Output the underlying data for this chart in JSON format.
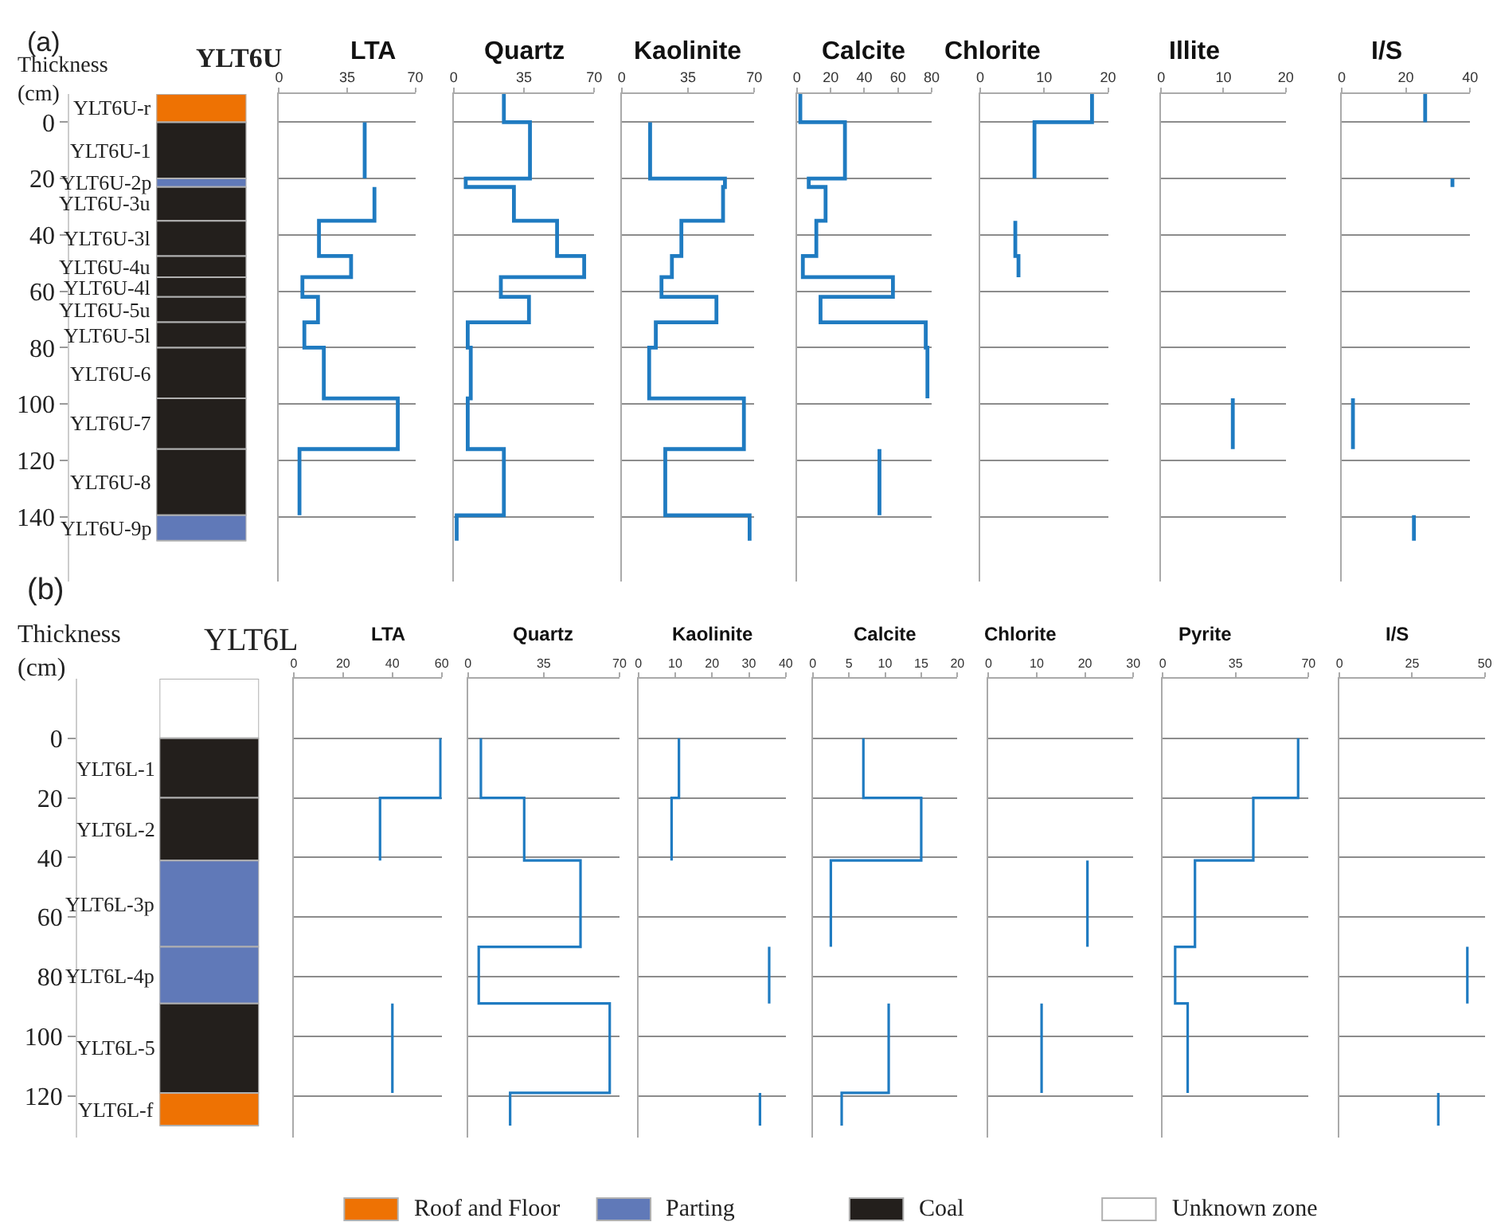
{
  "chart_data": [
    {
      "type": "bar",
      "title": "YLT6U",
      "ylabel": "Thickness (cm)",
      "categories": [
        null
      ],
      "ylim": [
        163,
        -10
      ],
      "yticks": [
        0,
        20,
        40,
        60,
        80,
        100,
        120,
        140
      ],
      "tick_labels": "y",
      "series": [
        {
          "name": "YLT6U-r",
          "color": "#ee7203",
          "base": [
            -10
          ],
          "values": [
            10
          ]
        },
        {
          "name": "YLT6U-1",
          "color": "#231f1c",
          "base": [
            0
          ],
          "values": [
            20
          ]
        },
        {
          "name": "YLT6U-2p",
          "color": "#6079b8",
          "base": [
            20
          ],
          "values": [
            3
          ]
        },
        {
          "name": "YLT6U-3u",
          "color": "#231f1c",
          "base": [
            23
          ],
          "values": [
            12
          ]
        },
        {
          "name": "YLT6U-3l",
          "color": "#231f1c",
          "base": [
            35
          ],
          "values": [
            12.5
          ]
        },
        {
          "name": "YLT6U-4u",
          "color": "#231f1c",
          "base": [
            47.5
          ],
          "values": [
            7.5
          ]
        },
        {
          "name": "YLT6U-4l",
          "color": "#231f1c",
          "base": [
            55
          ],
          "values": [
            7
          ]
        },
        {
          "name": "YLT6U-5u",
          "color": "#231f1c",
          "base": [
            62
          ],
          "values": [
            9
          ]
        },
        {
          "name": "YLT6U-5l",
          "color": "#231f1c",
          "base": [
            71
          ],
          "values": [
            9
          ]
        },
        {
          "name": "YLT6U-6",
          "color": "#231f1c",
          "base": [
            80
          ],
          "values": [
            18
          ]
        },
        {
          "name": "YLT6U-7",
          "color": "#231f1c",
          "base": [
            98
          ],
          "values": [
            18
          ]
        },
        {
          "name": "YLT6U-8",
          "color": "#231f1c",
          "base": [
            116
          ],
          "values": [
            23.5
          ]
        },
        {
          "name": "YLT6U-9p",
          "color": "#6079b8",
          "base": [
            139.5
          ],
          "values": [
            9
          ]
        }
      ],
      "annotations": [
        "(a)"
      ]
    },
    {
      "type": "line",
      "orientation": "horizontal",
      "title": "LTA",
      "xlim": [
        0,
        70
      ],
      "xticks": [
        0,
        35,
        70
      ],
      "ylim": [
        163,
        -10
      ],
      "yticks": [
        0,
        20,
        40,
        60,
        80,
        100,
        120,
        140
      ],
      "grid": "y",
      "tick_labels": "x",
      "series": [
        {
          "color": "#1f7bc1",
          "x": [
            0,
            20,
            null,
            23,
            35,
            35,
            47.5,
            47.5,
            55,
            55,
            62,
            62,
            71,
            71,
            80,
            80,
            98,
            98,
            116,
            116,
            139.5
          ],
          "values": [
            44,
            44,
            null,
            49,
            49,
            20.5,
            20.5,
            37,
            37,
            12,
            12,
            20,
            20,
            13,
            13,
            23,
            23,
            61,
            61,
            10.5,
            10.5
          ]
        }
      ]
    },
    {
      "type": "line",
      "orientation": "horizontal",
      "title": "Quartz",
      "xlim": [
        0,
        70
      ],
      "xticks": [
        0,
        35,
        70
      ],
      "ylim": [
        163,
        -10
      ],
      "yticks": [
        0,
        20,
        40,
        60,
        80,
        100,
        120,
        140
      ],
      "grid": "y",
      "tick_labels": "x",
      "series": [
        {
          "color": "#1f7bc1",
          "x": [
            -10,
            0,
            0,
            20,
            20,
            23,
            23,
            35,
            35,
            47.5,
            47.5,
            55,
            55,
            62,
            62,
            71,
            71,
            80,
            80,
            98,
            98,
            116,
            116,
            139.5,
            139.5,
            148.5
          ],
          "values": [
            25,
            25,
            38,
            38,
            6,
            6,
            30,
            30,
            51.5,
            51.5,
            65,
            65,
            23.5,
            23.5,
            37.5,
            37.5,
            7,
            7,
            8.5,
            8.5,
            7,
            7,
            25,
            25,
            1.5,
            1.5
          ]
        }
      ]
    },
    {
      "type": "line",
      "orientation": "horizontal",
      "title": "Kaolinite",
      "xlim": [
        0,
        70
      ],
      "xticks": [
        0,
        35,
        70
      ],
      "ylim": [
        163,
        -10
      ],
      "yticks": [
        0,
        20,
        40,
        60,
        80,
        100,
        120,
        140
      ],
      "grid": "y",
      "tick_labels": "x",
      "series": [
        {
          "color": "#1f7bc1",
          "x": [
            0,
            20,
            20,
            23,
            23,
            35,
            35,
            47.5,
            47.5,
            55,
            55,
            62,
            62,
            71,
            71,
            80,
            80,
            98,
            98,
            116,
            116,
            139.5,
            139.5,
            148.5
          ],
          "values": [
            15,
            15,
            54.5,
            54.5,
            53.5,
            53.5,
            31.5,
            31.5,
            26.5,
            26.5,
            21,
            21,
            50,
            50,
            18,
            18,
            14.5,
            14.5,
            64.5,
            64.5,
            23,
            23,
            67.5,
            67.5
          ]
        }
      ]
    },
    {
      "type": "line",
      "orientation": "horizontal",
      "title": "Calcite",
      "xlim": [
        0,
        80
      ],
      "xticks": [
        0,
        20,
        40,
        60,
        80
      ],
      "ylim": [
        163,
        -10
      ],
      "yticks": [
        0,
        20,
        40,
        60,
        80,
        100,
        120,
        140
      ],
      "grid": "y",
      "tick_labels": "x",
      "series": [
        {
          "color": "#1f7bc1",
          "x": [
            -10,
            0,
            0,
            20,
            20,
            23,
            23,
            35,
            35,
            47.5,
            47.5,
            55,
            55,
            62,
            62,
            71,
            71,
            80,
            80,
            98,
            null,
            116,
            139.5
          ],
          "values": [
            2,
            2,
            28.5,
            28.5,
            7,
            7,
            17,
            17,
            11.5,
            11.5,
            3.5,
            3.5,
            57,
            57,
            14,
            14,
            76.5,
            76.5,
            77.5,
            77.5,
            null,
            49,
            49
          ]
        }
      ]
    },
    {
      "type": "line",
      "orientation": "horizontal",
      "title": "Chlorite",
      "xlim": [
        0,
        20
      ],
      "xticks": [
        0,
        10,
        20
      ],
      "ylim": [
        163,
        -10
      ],
      "yticks": [
        0,
        20,
        40,
        60,
        80,
        100,
        120,
        140
      ],
      "grid": "y",
      "tick_labels": "x",
      "series": [
        {
          "color": "#1f7bc1",
          "x": [
            -10,
            0,
            0,
            20,
            null,
            35,
            47.5,
            47.5,
            55
          ],
          "values": [
            17.5,
            17.5,
            8.5,
            8.5,
            null,
            5.5,
            5.5,
            6,
            6
          ]
        }
      ]
    },
    {
      "type": "line",
      "orientation": "horizontal",
      "title": "Illite",
      "xlim": [
        0,
        20
      ],
      "xticks": [
        0,
        10,
        20
      ],
      "ylim": [
        163,
        -10
      ],
      "yticks": [
        0,
        20,
        40,
        60,
        80,
        100,
        120,
        140
      ],
      "grid": "y",
      "tick_labels": "x",
      "series": [
        {
          "color": "#1f7bc1",
          "x": [
            98,
            116
          ],
          "values": [
            11.5,
            11.5
          ]
        }
      ]
    },
    {
      "type": "line",
      "orientation": "horizontal",
      "title": "I/S",
      "xlim": [
        0,
        40
      ],
      "xticks": [
        0,
        20,
        40
      ],
      "ylim": [
        163,
        -10
      ],
      "yticks": [
        0,
        20,
        40,
        60,
        80,
        100,
        120,
        140
      ],
      "grid": "y",
      "tick_labels": "x",
      "series": [
        {
          "color": "#1f7bc1",
          "x": [
            -10,
            0,
            null,
            20,
            23,
            null,
            98,
            116,
            null,
            139.5,
            148.5
          ],
          "values": [
            26,
            26,
            null,
            34.5,
            34.5,
            null,
            3.5,
            3.5,
            null,
            22.5,
            22.5
          ]
        }
      ]
    },
    {
      "type": "bar",
      "title": "YLT6L",
      "ylabel": "Thickness (cm)",
      "categories": [
        null
      ],
      "ylim": [
        134,
        -20
      ],
      "yticks": [
        0,
        20,
        40,
        60,
        80,
        100,
        120
      ],
      "tick_labels": "y",
      "series": [
        {
          "color": "#ffffff",
          "base": [
            -20
          ],
          "values": [
            20
          ]
        },
        {
          "name": "YLT6L-1",
          "color": "#231f1c",
          "base": [
            0
          ],
          "values": [
            20
          ]
        },
        {
          "name": "YLT6L-2",
          "color": "#231f1c",
          "base": [
            20
          ],
          "values": [
            21
          ]
        },
        {
          "name": "YLT6L-3p",
          "color": "#6079b8",
          "base": [
            41
          ],
          "values": [
            29
          ]
        },
        {
          "name": "YLT6L-4p",
          "color": "#6079b8",
          "base": [
            70
          ],
          "values": [
            19
          ]
        },
        {
          "name": "YLT6L-5",
          "color": "#231f1c",
          "base": [
            89
          ],
          "values": [
            30
          ]
        },
        {
          "name": "YLT6L-f",
          "color": "#ee7203",
          "base": [
            119
          ],
          "values": [
            11
          ]
        }
      ],
      "annotations": [
        "(b)"
      ]
    },
    {
      "type": "line",
      "orientation": "horizontal",
      "title": "LTA",
      "xlim": [
        0,
        60
      ],
      "xticks": [
        0,
        20,
        40,
        60
      ],
      "ylim": [
        134,
        -20
      ],
      "yticks": [
        0,
        20,
        40,
        60,
        80,
        100,
        120
      ],
      "grid": "y",
      "tick_labels": "x",
      "series": [
        {
          "color": "#1f7bc1",
          "x": [
            0,
            20,
            20,
            41,
            null,
            89,
            119
          ],
          "values": [
            59.5,
            59.5,
            35,
            35,
            null,
            40,
            40
          ]
        }
      ]
    },
    {
      "type": "line",
      "orientation": "horizontal",
      "title": "Quartz",
      "xlim": [
        0,
        70
      ],
      "xticks": [
        0,
        35,
        70
      ],
      "ylim": [
        134,
        -20
      ],
      "yticks": [
        0,
        20,
        40,
        60,
        80,
        100,
        120
      ],
      "grid": "y",
      "tick_labels": "x",
      "series": [
        {
          "color": "#1f7bc1",
          "x": [
            0,
            20,
            20,
            41,
            41,
            70,
            70,
            89,
            89,
            119,
            119,
            130
          ],
          "values": [
            6,
            6,
            26,
            26,
            52,
            52,
            5,
            5,
            65.5,
            65.5,
            19.5,
            19.5
          ]
        }
      ]
    },
    {
      "type": "line",
      "orientation": "horizontal",
      "title": "Kaolinite",
      "xlim": [
        0,
        40
      ],
      "xticks": [
        0,
        10,
        20,
        30,
        40
      ],
      "ylim": [
        134,
        -20
      ],
      "yticks": [
        0,
        20,
        40,
        60,
        80,
        100,
        120
      ],
      "grid": "y",
      "tick_labels": "x",
      "series": [
        {
          "color": "#1f7bc1",
          "x": [
            0,
            20,
            20,
            41,
            null,
            70,
            89,
            null,
            119,
            130
          ],
          "values": [
            11,
            11,
            9,
            9,
            null,
            35.5,
            35.5,
            null,
            33,
            33
          ]
        }
      ]
    },
    {
      "type": "line",
      "orientation": "horizontal",
      "title": "Calcite",
      "xlim": [
        0,
        20
      ],
      "xticks": [
        0,
        5,
        10,
        15,
        20
      ],
      "ylim": [
        134,
        -20
      ],
      "yticks": [
        0,
        20,
        40,
        60,
        80,
        100,
        120
      ],
      "grid": "y",
      "tick_labels": "x",
      "series": [
        {
          "color": "#1f7bc1",
          "x": [
            0,
            20,
            20,
            41,
            41,
            70,
            null,
            89,
            119,
            119,
            130
          ],
          "values": [
            7,
            7,
            15,
            15,
            2.5,
            2.5,
            null,
            10.5,
            10.5,
            4,
            4
          ]
        }
      ]
    },
    {
      "type": "line",
      "orientation": "horizontal",
      "title": "Chlorite",
      "xlim": [
        0,
        30
      ],
      "xticks": [
        0,
        10,
        20,
        30
      ],
      "ylim": [
        134,
        -20
      ],
      "yticks": [
        0,
        20,
        40,
        60,
        80,
        100,
        120
      ],
      "grid": "y",
      "tick_labels": "x",
      "series": [
        {
          "color": "#1f7bc1",
          "x": [
            41,
            70,
            null,
            89,
            119
          ],
          "values": [
            20.5,
            20.5,
            null,
            11,
            11
          ]
        }
      ]
    },
    {
      "type": "line",
      "orientation": "horizontal",
      "title": "Pyrite",
      "xlim": [
        0,
        70
      ],
      "xticks": [
        0,
        35,
        70
      ],
      "ylim": [
        134,
        -20
      ],
      "yticks": [
        0,
        20,
        40,
        60,
        80,
        100,
        120
      ],
      "grid": "y",
      "tick_labels": "x",
      "series": [
        {
          "color": "#1f7bc1",
          "x": [
            0,
            20,
            20,
            41,
            41,
            70,
            70,
            89,
            89,
            119
          ],
          "values": [
            65,
            65,
            43.5,
            43.5,
            15.5,
            15.5,
            6,
            6,
            12,
            12
          ]
        }
      ]
    },
    {
      "type": "line",
      "orientation": "horizontal",
      "title": "I/S",
      "xlim": [
        0,
        50
      ],
      "xticks": [
        0,
        25,
        50
      ],
      "ylim": [
        134,
        -20
      ],
      "yticks": [
        0,
        20,
        40,
        60,
        80,
        100,
        120
      ],
      "grid": "y",
      "tick_labels": "x",
      "series": [
        {
          "color": "#1f7bc1",
          "x": [
            70,
            89,
            null,
            119,
            130
          ],
          "values": [
            44,
            44,
            null,
            34,
            34
          ]
        }
      ]
    },
    {
      "type": "other",
      "categories": [
        "Roof and Floor",
        "Parting",
        "Coal",
        "Unknown zone"
      ],
      "colors": [
        "#ee7203",
        "#6079b8",
        "#231f1c",
        "#ffffff"
      ]
    }
  ]
}
